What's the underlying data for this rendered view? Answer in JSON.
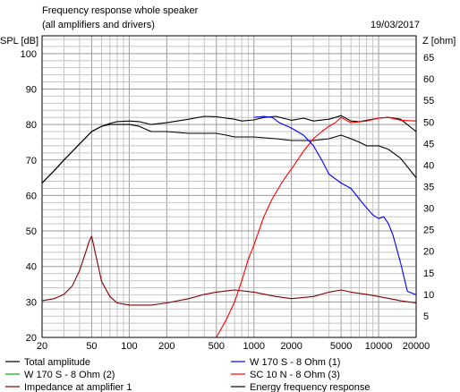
{
  "chart_data": {
    "type": "line",
    "title": "Frequency response whole speaker",
    "subtitle": "(all amplifiers and drivers)",
    "date": "19/03/2017",
    "ylabel": "SPL [dB]",
    "y2label": "Z [ohm]",
    "xscale": "log",
    "xlim": [
      20,
      20000
    ],
    "ylim": [
      20,
      105
    ],
    "y2lim": [
      0,
      70
    ],
    "grid": true,
    "x_ticks": [
      20,
      50,
      100,
      200,
      500,
      1000,
      2000,
      5000,
      10000,
      20000
    ],
    "x_tick_labels": [
      "20",
      "50",
      "100",
      "200",
      "500",
      "1000",
      "2000",
      "5000",
      "10000",
      "20000"
    ],
    "y_ticks": [
      20,
      30,
      40,
      50,
      60,
      70,
      80,
      90,
      100
    ],
    "y_tick_labels": [
      "20",
      "30",
      "40",
      "50",
      "60",
      "70",
      "80",
      "90",
      "100"
    ],
    "y2_ticks": [
      5,
      10,
      15,
      20,
      25,
      30,
      35,
      40,
      45,
      50,
      55,
      60,
      65
    ],
    "y2_tick_labels": [
      "5",
      "10",
      "15",
      "20",
      "25",
      "30",
      "35",
      "40",
      "45",
      "50",
      "55",
      "60",
      "65"
    ],
    "series": [
      {
        "name": "Total amplitude",
        "color": "#000000",
        "axis": "left",
        "x": [
          20,
          25,
          30,
          40,
          50,
          60,
          70,
          80,
          100,
          120,
          150,
          200,
          300,
          400,
          500,
          600,
          700,
          800,
          1000,
          1200,
          1500,
          2000,
          2500,
          3000,
          4000,
          4500,
          5000,
          6000,
          7000,
          8000,
          10000,
          12000,
          15000,
          20000
        ],
        "y": [
          63.5,
          67,
          70,
          74.5,
          78,
          79.5,
          80.3,
          80.8,
          81,
          80.8,
          80,
          80.5,
          81.5,
          82.3,
          82.2,
          81.8,
          81.5,
          81,
          81.3,
          82,
          82.3,
          81.2,
          81.8,
          81,
          81.5,
          82,
          82.5,
          81,
          80.8,
          81.2,
          81.8,
          82,
          81.5,
          78
        ]
      },
      {
        "name": "W 170 S - 8 Ohm (1)",
        "color": "#0000ff",
        "axis": "left",
        "x": [
          1000,
          1200,
          1400,
          1600,
          2000,
          2500,
          3000,
          3500,
          4000,
          5000,
          6000,
          7000,
          8000,
          9000,
          10000,
          11000,
          12000,
          13000,
          15000,
          17000,
          20000
        ],
        "y": [
          82,
          82.3,
          82,
          80.5,
          79,
          77,
          74,
          70,
          66,
          63.5,
          62,
          59,
          56.5,
          54.5,
          53.5,
          54,
          52,
          49,
          41,
          33,
          32
        ]
      },
      {
        "name": "W 170 S - 8 Ohm (2)",
        "color": "#00b000",
        "axis": "left",
        "x": [
          20,
          20000
        ],
        "y": [
          20,
          20
        ]
      },
      {
        "name": "SC 10 N - 8 Ohm (3)",
        "color": "#ff0000",
        "axis": "left",
        "x": [
          500,
          600,
          700,
          800,
          900,
          1000,
          1200,
          1400,
          1700,
          2000,
          2500,
          3000,
          3500,
          4000,
          4500,
          5000,
          6000,
          8000,
          10000,
          12000,
          15000,
          20000
        ],
        "y": [
          20,
          25,
          30,
          36,
          42,
          46,
          54,
          59,
          64,
          67.5,
          72.5,
          76,
          78,
          79.5,
          80.5,
          82,
          80.5,
          81,
          81.8,
          82,
          81.2,
          81
        ]
      },
      {
        "name": "Impedance at amplifier 1",
        "color": "#800000",
        "axis": "right",
        "x": [
          20,
          25,
          30,
          35,
          40,
          45,
          48,
          50,
          55,
          60,
          70,
          80,
          100,
          150,
          200,
          300,
          400,
          500,
          700,
          1000,
          1500,
          2000,
          3000,
          4000,
          5000,
          6000,
          8000,
          10000,
          15000,
          20000
        ],
        "y": [
          8.5,
          9,
          10,
          12,
          15.5,
          20,
          22.5,
          23.5,
          18,
          13,
          9.5,
          8,
          7.5,
          7.5,
          8,
          9,
          10,
          10.5,
          11,
          10.5,
          9.5,
          9,
          9.5,
          10.5,
          11,
          10.5,
          10,
          9.5,
          8.5,
          8
        ]
      },
      {
        "name": "Energy frequency response",
        "color": "#000000",
        "axis": "left",
        "x": [
          20,
          25,
          30,
          40,
          50,
          60,
          70,
          80,
          100,
          120,
          150,
          200,
          300,
          400,
          500,
          600,
          700,
          800,
          1000,
          1500,
          2000,
          3000,
          4000,
          5000,
          6000,
          7000,
          8000,
          10000,
          12000,
          15000,
          20000
        ],
        "y": [
          63.5,
          67,
          70,
          74.5,
          78,
          79.5,
          80,
          80,
          80,
          79.5,
          78,
          78,
          77.5,
          77.5,
          77.5,
          77,
          76.5,
          76.5,
          76.5,
          76,
          75.5,
          75.5,
          76,
          77,
          76,
          75,
          74,
          74,
          73,
          70.5,
          65
        ]
      }
    ],
    "legend": [
      "Total amplitude",
      "W 170 S - 8 Ohm (1)",
      "W 170 S - 8 Ohm (2)",
      "SC 10 N - 8 Ohm (3)",
      "Impedance at amplifier 1",
      "Energy frequency response"
    ],
    "legend_placement": "bottom"
  }
}
